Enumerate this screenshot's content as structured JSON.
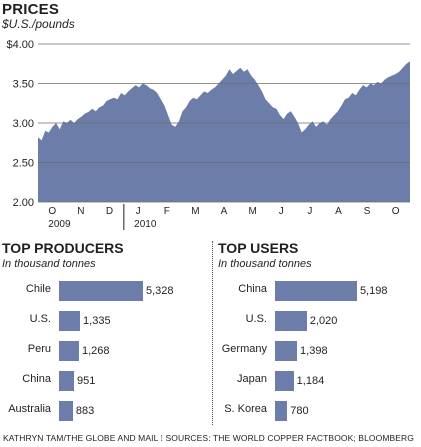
{
  "chart_data": [
    {
      "type": "area",
      "title": "PRICES",
      "ylabel": "$U.S./pounds",
      "ylim": [
        2.0,
        4.0
      ],
      "yticks": [
        "$4.00",
        "3.50",
        "3.00",
        "2.50",
        "2.00"
      ],
      "ytick_values": [
        4.0,
        3.5,
        3.0,
        2.5,
        2.0
      ],
      "xticks": [
        "O",
        "N",
        "D",
        "J",
        "F",
        "M",
        "A",
        "M",
        "J",
        "J",
        "A",
        "S",
        "O"
      ],
      "years": [
        "2009",
        "2010"
      ],
      "grid": true,
      "color": "#6b7da8",
      "series": [
        {
          "values": [
            2.82,
            2.78,
            2.9,
            2.88,
            2.95,
            3.0,
            2.92,
            3.02,
            3.0,
            3.04,
            3.0,
            3.05,
            3.08,
            3.12,
            3.14,
            3.18,
            3.15,
            3.2,
            3.22,
            3.28,
            3.3,
            3.32,
            3.3,
            3.38,
            3.35,
            3.4,
            3.44,
            3.48,
            3.45,
            3.5,
            3.48,
            3.44,
            3.42,
            3.38,
            3.3,
            3.22,
            3.1,
            2.98,
            2.95,
            3.02,
            3.15,
            3.2,
            3.28,
            3.32,
            3.3,
            3.35,
            3.4,
            3.38,
            3.42,
            3.45,
            3.5,
            3.55,
            3.6,
            3.68,
            3.62,
            3.66,
            3.7,
            3.65,
            3.68,
            3.6,
            3.55,
            3.48,
            3.4,
            3.3,
            3.25,
            3.2,
            3.18,
            3.1,
            3.05,
            3.12,
            3.15,
            3.08,
            3.0,
            2.88,
            2.92,
            2.98,
            3.02,
            2.95,
            3.0,
            3.02,
            2.98,
            3.05,
            3.1,
            3.15,
            3.22,
            3.3,
            3.32,
            3.38,
            3.35,
            3.42,
            3.48,
            3.45,
            3.5,
            3.48,
            3.52,
            3.5,
            3.55,
            3.58,
            3.6,
            3.62,
            3.65,
            3.7,
            3.75,
            3.78
          ]
        }
      ]
    },
    {
      "type": "bar",
      "title": "TOP PRODUCERS",
      "subtitle": "In thousand tonnes",
      "categories": [
        "Chile",
        "U.S.",
        "Peru",
        "China",
        "Australia"
      ],
      "values": [
        5328,
        1335,
        1268,
        951,
        883
      ],
      "value_labels": [
        "5,328",
        "1,335",
        "1,268",
        "951",
        "883"
      ]
    },
    {
      "type": "bar",
      "title": "TOP USERS",
      "subtitle": "In thousand tonnes",
      "categories": [
        "China",
        "U.S.",
        "Germany",
        "Japan",
        "S. Korea"
      ],
      "values": [
        5198,
        2020,
        1398,
        1184,
        780
      ],
      "value_labels": [
        "5,198",
        "2,020",
        "1,398",
        "1,184",
        "780"
      ]
    }
  ],
  "credit": "KATHRYN TAM/THE GLOBE AND MAIL  ⁞  SOURCES: THE WORLD COPPER FACTBOOK; BLOOMBERG"
}
